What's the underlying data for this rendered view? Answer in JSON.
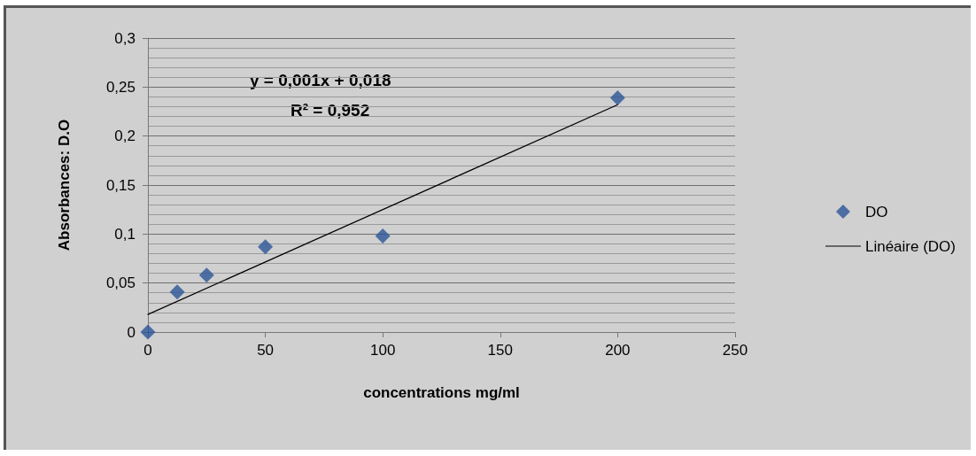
{
  "chart_data": {
    "type": "scatter",
    "xlabel": "concentrations mg/ml",
    "ylabel": "Absorbances: D.O",
    "series": [
      {
        "name": "DO",
        "color": "#2a5597",
        "marker": "diamond",
        "x": [
          0,
          12.5,
          25,
          50,
          100,
          200
        ],
        "values": [
          0,
          0.041,
          0.058,
          0.087,
          0.098,
          0.239
        ]
      },
      {
        "name": "Linéaire (DO)",
        "type": "line",
        "color": "#000000",
        "marker": "none",
        "x": [
          0,
          200
        ],
        "values": [
          0.018,
          0.232
        ]
      }
    ],
    "xlim": [
      0,
      250
    ],
    "xticks": [
      0,
      50,
      100,
      150,
      200,
      250
    ],
    "ylim": [
      0,
      0.3
    ],
    "yticks": [
      0,
      {
        "value": 0.05,
        "label": "0,05"
      },
      {
        "value": 0.1,
        "label": "0,1"
      },
      {
        "value": 0.15,
        "label": "0,15"
      },
      {
        "value": 0.2,
        "label": "0,2"
      },
      {
        "value": 0.25,
        "label": "0,25"
      },
      {
        "value": 0.3,
        "label": "0,3"
      }
    ],
    "annotations": [
      "y = 0,001x + 0,018",
      "R² = 0,952"
    ],
    "grid": "y",
    "legend": "right"
  }
}
